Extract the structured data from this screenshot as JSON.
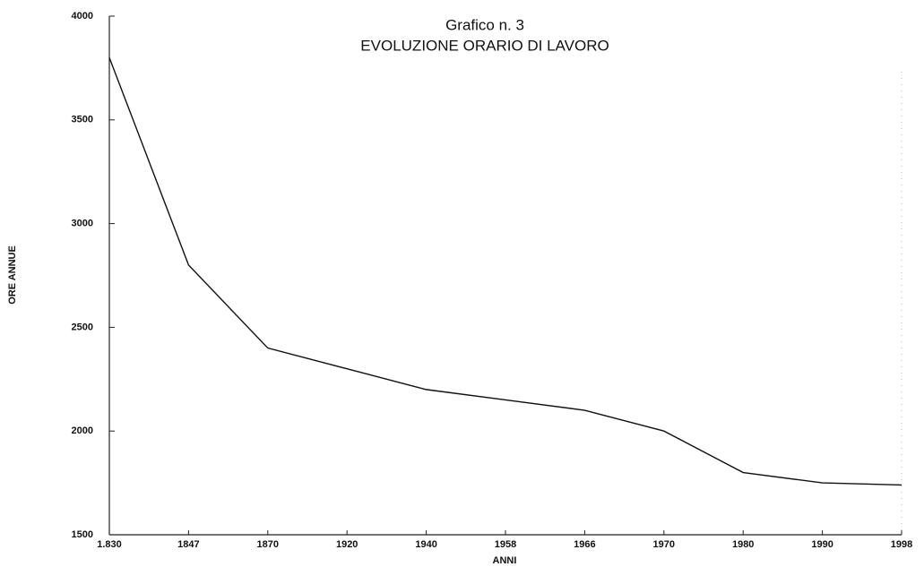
{
  "chart_data": {
    "type": "line",
    "title": "Grafico n. 3",
    "subtitle": "EVOLUZIONE ORARIO DI LAVORO",
    "x_label": "ANNI",
    "y_label": "ORE ANNUE",
    "categories": [
      "1.830",
      "1847",
      "1870",
      "1920",
      "1940",
      "1958",
      "1966",
      "1970",
      "1980",
      "1990",
      "1998"
    ],
    "series": [
      {
        "name": "ORE ANNUE",
        "color": "#111111",
        "values": [
          3800,
          2800,
          2400,
          2300,
          2200,
          2150,
          2100,
          2000,
          1800,
          1750,
          1740
        ]
      }
    ],
    "ylim": [
      1500,
      4000
    ],
    "yticks": [
      1500,
      2000,
      2500,
      3000,
      3500,
      4000
    ],
    "grid": false
  }
}
